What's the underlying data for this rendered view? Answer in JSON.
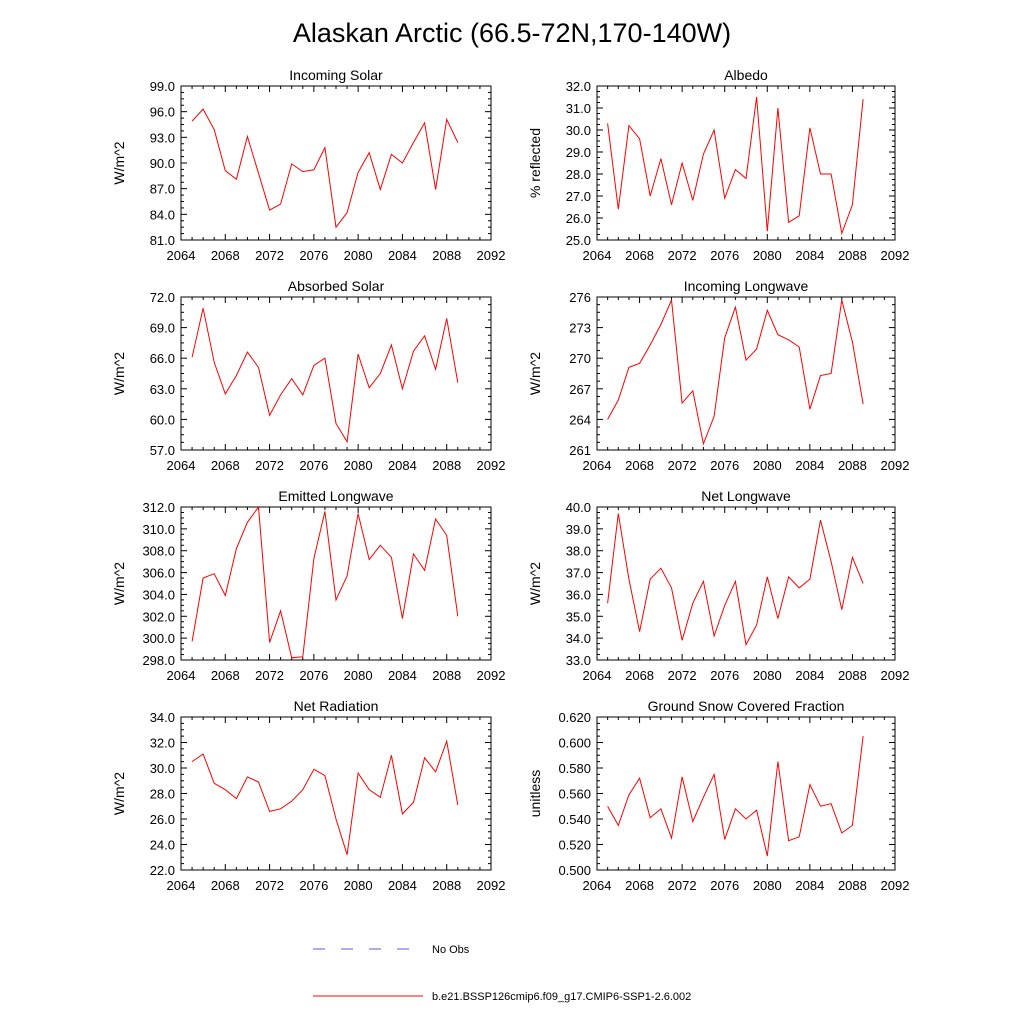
{
  "title": "Alaskan Arctic (66.5-72N,170-140W)",
  "legend": {
    "obs_label": "No Obs",
    "obs_color": "#5a5ad6",
    "model_label": "b.e21.BSSP126cmip6.f09_g17.CMIP6-SSP1-2.6.002",
    "model_color": "#ff0000"
  },
  "chart_data": [
    {
      "type": "line",
      "title": "Incoming Solar",
      "ylabel": "W/m^2",
      "xlim": [
        2064,
        2092
      ],
      "ylim": [
        81,
        99
      ],
      "x_ticks": [
        2064,
        2068,
        2072,
        2076,
        2080,
        2084,
        2088,
        2092
      ],
      "y_ticks": [
        "81.0",
        "84.0",
        "87.0",
        "90.0",
        "93.0",
        "96.0",
        "99.0"
      ],
      "series": [
        {
          "color": "#ff0000",
          "x": [
            2065,
            2066,
            2067,
            2068,
            2069,
            2070,
            2071,
            2072,
            2073,
            2074,
            2075,
            2076,
            2077,
            2078,
            2079,
            2080,
            2081,
            2082,
            2083,
            2084,
            2085,
            2086,
            2087,
            2088,
            2089
          ],
          "y": [
            94.9,
            96.3,
            93.9,
            89.1,
            88.1,
            93.1,
            88.8,
            84.5,
            85.2,
            89.9,
            89.0,
            89.2,
            91.8,
            82.5,
            84.2,
            88.9,
            91.2,
            86.9,
            91.0,
            90.0,
            92.4,
            94.7,
            86.9,
            95.1,
            92.4
          ]
        }
      ]
    },
    {
      "type": "line",
      "title": "Albedo",
      "ylabel": "% reflected",
      "xlim": [
        2064,
        2092
      ],
      "ylim": [
        25,
        32
      ],
      "x_ticks": [
        2064,
        2068,
        2072,
        2076,
        2080,
        2084,
        2088,
        2092
      ],
      "y_ticks": [
        "25.0",
        "26.0",
        "27.0",
        "28.0",
        "29.0",
        "30.0",
        "31.0",
        "32.0"
      ],
      "series": [
        {
          "color": "#ff0000",
          "x": [
            2065,
            2066,
            2067,
            2068,
            2069,
            2070,
            2071,
            2072,
            2073,
            2074,
            2075,
            2076,
            2077,
            2078,
            2079,
            2080,
            2081,
            2082,
            2083,
            2084,
            2085,
            2086,
            2087,
            2088,
            2089
          ],
          "y": [
            30.3,
            26.4,
            30.2,
            29.6,
            27.0,
            28.7,
            26.6,
            28.5,
            26.8,
            28.9,
            30.0,
            26.9,
            28.2,
            27.8,
            31.5,
            25.4,
            31.0,
            25.8,
            26.1,
            30.1,
            28.0,
            28.0,
            25.3,
            26.6,
            31.4
          ]
        }
      ]
    },
    {
      "type": "line",
      "title": "Absorbed Solar",
      "ylabel": "W/m^2",
      "xlim": [
        2064,
        2092
      ],
      "ylim": [
        57,
        72
      ],
      "x_ticks": [
        2064,
        2068,
        2072,
        2076,
        2080,
        2084,
        2088,
        2092
      ],
      "y_ticks": [
        "57.0",
        "60.0",
        "63.0",
        "66.0",
        "69.0",
        "72.0"
      ],
      "series": [
        {
          "color": "#ff0000",
          "x": [
            2065,
            2066,
            2067,
            2068,
            2069,
            2070,
            2071,
            2072,
            2073,
            2074,
            2075,
            2076,
            2077,
            2078,
            2079,
            2080,
            2081,
            2082,
            2083,
            2084,
            2085,
            2086,
            2087,
            2088,
            2089
          ],
          "y": [
            66.1,
            70.9,
            65.6,
            62.5,
            64.3,
            66.6,
            65.1,
            60.4,
            62.4,
            64.0,
            62.4,
            65.3,
            66.0,
            59.6,
            57.8,
            66.4,
            63.1,
            64.5,
            67.3,
            63.0,
            66.7,
            68.2,
            64.9,
            69.9,
            63.6
          ]
        }
      ]
    },
    {
      "type": "line",
      "title": "Incoming Longwave",
      "ylabel": "W/m^2",
      "xlim": [
        2064,
        2092
      ],
      "ylim": [
        261,
        276
      ],
      "x_ticks": [
        2064,
        2068,
        2072,
        2076,
        2080,
        2084,
        2088,
        2092
      ],
      "y_ticks": [
        "261",
        "264",
        "267",
        "270",
        "273",
        "276"
      ],
      "series": [
        {
          "color": "#ff0000",
          "x": [
            2065,
            2066,
            2067,
            2068,
            2069,
            2070,
            2071,
            2072,
            2073,
            2074,
            2075,
            2076,
            2077,
            2078,
            2079,
            2080,
            2081,
            2082,
            2083,
            2084,
            2085,
            2086,
            2087,
            2088,
            2089
          ],
          "y": [
            264.0,
            265.9,
            269.1,
            269.5,
            271.3,
            273.3,
            275.7,
            265.6,
            266.8,
            261.6,
            264.3,
            272.0,
            275.0,
            269.8,
            270.9,
            274.7,
            272.3,
            271.8,
            271.1,
            265.0,
            268.3,
            268.5,
            275.7,
            271.6,
            265.5
          ]
        }
      ]
    },
    {
      "type": "line",
      "title": "Emitted Longwave",
      "ylabel": "W/m^2",
      "xlim": [
        2064,
        2092
      ],
      "ylim": [
        298,
        312
      ],
      "x_ticks": [
        2064,
        2068,
        2072,
        2076,
        2080,
        2084,
        2088,
        2092
      ],
      "y_ticks": [
        "298.0",
        "300.0",
        "302.0",
        "304.0",
        "306.0",
        "308.0",
        "310.0",
        "312.0"
      ],
      "series": [
        {
          "color": "#ff0000",
          "x": [
            2065,
            2066,
            2067,
            2068,
            2069,
            2070,
            2071,
            2072,
            2073,
            2074,
            2075,
            2076,
            2077,
            2078,
            2079,
            2080,
            2081,
            2082,
            2083,
            2084,
            2085,
            2086,
            2087,
            2088,
            2089
          ],
          "y": [
            299.7,
            305.5,
            305.9,
            303.9,
            308.2,
            310.6,
            312.0,
            299.6,
            302.5,
            298.2,
            298.3,
            307.3,
            311.6,
            303.5,
            305.7,
            311.4,
            307.2,
            308.5,
            307.4,
            301.8,
            307.7,
            306.2,
            310.9,
            309.4,
            302.0
          ]
        }
      ]
    },
    {
      "type": "line",
      "title": "Net Longwave",
      "ylabel": "W/m^2",
      "xlim": [
        2064,
        2092
      ],
      "ylim": [
        33,
        40
      ],
      "x_ticks": [
        2064,
        2068,
        2072,
        2076,
        2080,
        2084,
        2088,
        2092
      ],
      "y_ticks": [
        "33.0",
        "34.0",
        "35.0",
        "36.0",
        "37.0",
        "38.0",
        "39.0",
        "40.0"
      ],
      "series": [
        {
          "color": "#ff0000",
          "x": [
            2065,
            2066,
            2067,
            2068,
            2069,
            2070,
            2071,
            2072,
            2073,
            2074,
            2075,
            2076,
            2077,
            2078,
            2079,
            2080,
            2081,
            2082,
            2083,
            2084,
            2085,
            2086,
            2087,
            2088,
            2089
          ],
          "y": [
            35.6,
            39.7,
            36.7,
            34.3,
            36.7,
            37.2,
            36.3,
            33.9,
            35.6,
            36.6,
            34.1,
            35.5,
            36.6,
            33.7,
            34.6,
            36.8,
            34.9,
            36.8,
            36.3,
            36.7,
            39.4,
            37.5,
            35.3,
            37.7,
            36.5
          ]
        }
      ]
    },
    {
      "type": "line",
      "title": "Net Radiation",
      "ylabel": "W/m^2",
      "xlim": [
        2064,
        2092
      ],
      "ylim": [
        22,
        34
      ],
      "x_ticks": [
        2064,
        2068,
        2072,
        2076,
        2080,
        2084,
        2088,
        2092
      ],
      "y_ticks": [
        "22.0",
        "24.0",
        "26.0",
        "28.0",
        "30.0",
        "32.0",
        "34.0"
      ],
      "series": [
        {
          "color": "#ff0000",
          "x": [
            2065,
            2066,
            2067,
            2068,
            2069,
            2070,
            2071,
            2072,
            2073,
            2074,
            2075,
            2076,
            2077,
            2078,
            2079,
            2080,
            2081,
            2082,
            2083,
            2084,
            2085,
            2086,
            2087,
            2088,
            2089
          ],
          "y": [
            30.5,
            31.1,
            28.8,
            28.3,
            27.6,
            29.3,
            28.9,
            26.6,
            26.8,
            27.4,
            28.3,
            29.9,
            29.4,
            26.0,
            23.2,
            29.6,
            28.3,
            27.7,
            31.0,
            26.4,
            27.3,
            30.8,
            29.7,
            32.1,
            27.1
          ]
        }
      ]
    },
    {
      "type": "line",
      "title": "Ground Snow Covered Fraction",
      "ylabel": "unitless",
      "xlim": [
        2064,
        2092
      ],
      "ylim": [
        0.5,
        0.62
      ],
      "x_ticks": [
        2064,
        2068,
        2072,
        2076,
        2080,
        2084,
        2088,
        2092
      ],
      "y_ticks": [
        "0.500",
        "0.520",
        "0.540",
        "0.560",
        "0.580",
        "0.600",
        "0.620"
      ],
      "series": [
        {
          "color": "#ff0000",
          "x": [
            2065,
            2066,
            2067,
            2068,
            2069,
            2070,
            2071,
            2072,
            2073,
            2074,
            2075,
            2076,
            2077,
            2078,
            2079,
            2080,
            2081,
            2082,
            2083,
            2084,
            2085,
            2086,
            2087,
            2088,
            2089
          ],
          "y": [
            0.55,
            0.535,
            0.559,
            0.572,
            0.541,
            0.548,
            0.525,
            0.573,
            0.538,
            0.557,
            0.575,
            0.524,
            0.548,
            0.54,
            0.547,
            0.511,
            0.585,
            0.523,
            0.526,
            0.567,
            0.55,
            0.552,
            0.529,
            0.535,
            0.605
          ]
        }
      ]
    }
  ]
}
